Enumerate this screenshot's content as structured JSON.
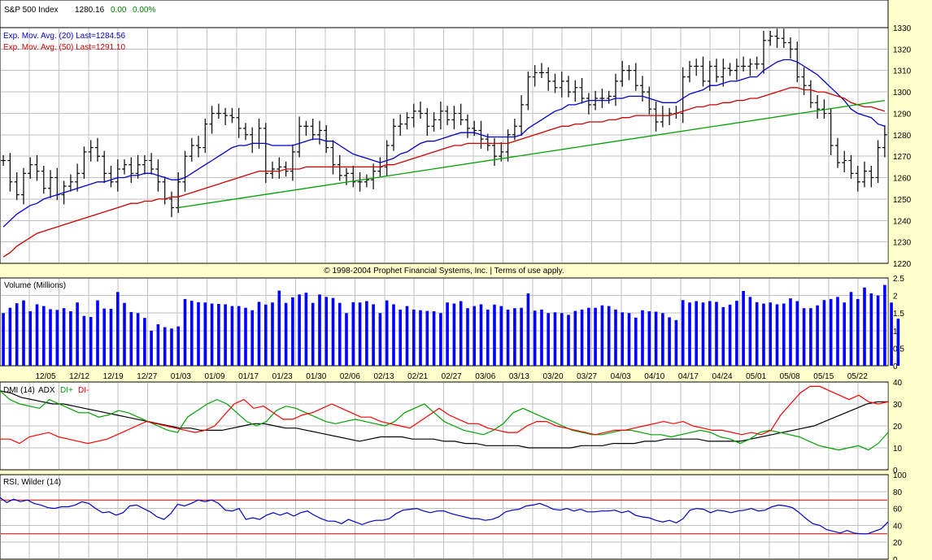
{
  "header": {
    "symbol": "S&P 500 Index",
    "last": "1280.16",
    "change": "0.00",
    "change_pct": "0.00%"
  },
  "legend": {
    "ema20": "Exp. Mov. Avg. (20) Last=1284.56",
    "ema50": "Exp. Mov. Avg. (50) Last=1291.10"
  },
  "copyright": "© 1998-2004 Prophet Financial Systems, Inc. | Terms of use apply.",
  "colors": {
    "background": "#ffffcc",
    "price_bar": "#000000",
    "ema20": "#0000cc",
    "ema50": "#cc0000",
    "trendline": "#00a000",
    "volume_bar": "#0000ff",
    "adx": "#000000",
    "di_plus": "#00a000",
    "di_minus": "#ff0000",
    "rsi": "#0000cc",
    "rsi_bounds": "#cc0000"
  },
  "chart_data": [
    {
      "type": "ohlc",
      "panel": "price",
      "ylim": [
        1220,
        1330
      ],
      "yticks": [
        1220,
        1230,
        1240,
        1250,
        1260,
        1270,
        1280,
        1290,
        1300,
        1310,
        1320,
        1330
      ],
      "grid": true,
      "close": [
        1268,
        1258,
        1252,
        1262,
        1266,
        1263,
        1255,
        1260,
        1252,
        1256,
        1258,
        1262,
        1272,
        1274,
        1270,
        1262,
        1258,
        1264,
        1266,
        1262,
        1266,
        1268,
        1264,
        1258,
        1250,
        1246,
        1258,
        1270,
        1275,
        1274,
        1285,
        1290,
        1290,
        1289,
        1288,
        1283,
        1280,
        1276,
        1283,
        1262,
        1264,
        1265,
        1263,
        1272,
        1284,
        1284,
        1280,
        1282,
        1274,
        1266,
        1261,
        1262,
        1258,
        1258,
        1259,
        1263,
        1265,
        1275,
        1284,
        1285,
        1288,
        1291,
        1290,
        1284,
        1287,
        1291,
        1287,
        1290,
        1287,
        1283,
        1282,
        1278,
        1275,
        1270,
        1272,
        1280,
        1284,
        1294,
        1307,
        1309,
        1309,
        1305,
        1302,
        1305,
        1300,
        1302,
        1297,
        1294,
        1297,
        1297,
        1298,
        1305,
        1310,
        1310,
        1303,
        1300,
        1292,
        1286,
        1289,
        1290,
        1290,
        1307,
        1312,
        1312,
        1305,
        1312,
        1307,
        1311,
        1310,
        1312,
        1312,
        1313,
        1313,
        1324,
        1326,
        1325,
        1323,
        1320,
        1307,
        1303,
        1295,
        1292,
        1290,
        1275,
        1267,
        1268,
        1262,
        1258,
        1263,
        1260,
        1274,
        1280
      ],
      "ema20": [
        1237,
        1240,
        1243,
        1245,
        1247,
        1248,
        1250,
        1251,
        1252,
        1253,
        1254,
        1255,
        1256,
        1257,
        1258,
        1258,
        1259,
        1260,
        1260,
        1261,
        1261,
        1262,
        1262,
        1261,
        1260,
        1259,
        1259,
        1260,
        1262,
        1264,
        1266,
        1268,
        1270,
        1272,
        1274,
        1275,
        1275,
        1276,
        1276,
        1276,
        1275,
        1275,
        1275,
        1275,
        1276,
        1277,
        1278,
        1278,
        1277,
        1277,
        1275,
        1273,
        1271,
        1270,
        1269,
        1268,
        1267,
        1268,
        1269,
        1271,
        1272,
        1274,
        1276,
        1277,
        1277,
        1278,
        1279,
        1280,
        1281,
        1281,
        1281,
        1280,
        1279,
        1279,
        1279,
        1279,
        1279,
        1280,
        1283,
        1285,
        1287,
        1289,
        1291,
        1292,
        1294,
        1294,
        1295,
        1296,
        1296,
        1296,
        1296,
        1297,
        1297,
        1298,
        1298,
        1298,
        1297,
        1296,
        1295,
        1295,
        1295,
        1297,
        1299,
        1300,
        1301,
        1303,
        1303,
        1304,
        1305,
        1305,
        1306,
        1307,
        1307,
        1310,
        1312,
        1314,
        1315,
        1315,
        1314,
        1312,
        1310,
        1308,
        1305,
        1302,
        1299,
        1296,
        1292,
        1290,
        1289,
        1288,
        1285,
        1284
      ],
      "ema50": [
        1223,
        1225,
        1228,
        1230,
        1232,
        1234,
        1235,
        1236,
        1237,
        1238,
        1239,
        1240,
        1241,
        1242,
        1243,
        1244,
        1245,
        1246,
        1247,
        1248,
        1248,
        1249,
        1249,
        1250,
        1250,
        1251,
        1251,
        1252,
        1253,
        1254,
        1255,
        1256,
        1257,
        1258,
        1259,
        1260,
        1261,
        1262,
        1263,
        1263,
        1263,
        1263,
        1264,
        1264,
        1264,
        1265,
        1265,
        1265,
        1265,
        1265,
        1265,
        1265,
        1265,
        1265,
        1265,
        1265,
        1265,
        1266,
        1266,
        1267,
        1268,
        1269,
        1270,
        1271,
        1272,
        1273,
        1274,
        1275,
        1275,
        1276,
        1276,
        1276,
        1276,
        1276,
        1276,
        1276,
        1277,
        1278,
        1279,
        1280,
        1281,
        1282,
        1283,
        1284,
        1284,
        1285,
        1285,
        1286,
        1286,
        1286,
        1287,
        1287,
        1288,
        1288,
        1289,
        1289,
        1289,
        1289,
        1289,
        1289,
        1290,
        1291,
        1292,
        1293,
        1293,
        1294,
        1294,
        1295,
        1295,
        1296,
        1296,
        1297,
        1297,
        1298,
        1299,
        1300,
        1301,
        1302,
        1302,
        1301,
        1301,
        1300,
        1300,
        1299,
        1298,
        1297,
        1295,
        1294,
        1293,
        1293,
        1292,
        1291
      ],
      "trendline": [
        {
          "x": 26,
          "y": 1246
        },
        {
          "x": 131,
          "y": 1296
        }
      ]
    },
    {
      "type": "bar",
      "panel": "volume",
      "title": "Volume (Millions)",
      "ylim": [
        0,
        2.5
      ],
      "yticks": [
        0,
        0.5,
        1,
        1.5,
        2,
        2.5
      ],
      "values": [
        1.5,
        1.65,
        1.78,
        1.86,
        1.55,
        1.75,
        1.7,
        1.61,
        1.59,
        1.64,
        1.55,
        1.8,
        1.42,
        1.39,
        1.86,
        1.63,
        1.62,
        2.1,
        1.79,
        1.53,
        1.5,
        1.36,
        1.0,
        1.18,
        1.1,
        1.06,
        1.12,
        1.9,
        1.85,
        1.81,
        1.8,
        1.77,
        1.76,
        1.75,
        1.7,
        1.7,
        1.65,
        1.58,
        1.82,
        1.74,
        1.8,
        2.14,
        1.79,
        1.95,
        2.03,
        2.08,
        1.79,
        2.03,
        1.96,
        1.93,
        1.79,
        1.5,
        1.81,
        1.8,
        1.84,
        1.75,
        1.5,
        1.86,
        1.75,
        1.6,
        1.7,
        1.6,
        1.58,
        1.56,
        1.55,
        1.5,
        1.8,
        1.77,
        1.84,
        1.64,
        1.7,
        1.75,
        1.6,
        1.74,
        1.7,
        1.6,
        1.64,
        1.65,
        2.06,
        1.57,
        1.6,
        1.5,
        1.52,
        1.5,
        1.45,
        1.56,
        1.6,
        1.65,
        1.65,
        1.72,
        1.7,
        1.6,
        1.52,
        1.5,
        1.37,
        1.58,
        1.55,
        1.54,
        1.5,
        1.38,
        1.3,
        1.87,
        1.8,
        1.84,
        1.8,
        1.84,
        1.82,
        1.67,
        1.74,
        1.85,
        2.13,
        1.96,
        1.81,
        1.77,
        1.8,
        1.75,
        1.77,
        1.92,
        1.84,
        1.64,
        1.64,
        1.72,
        1.87,
        1.9,
        1.96,
        1.8,
        2.1,
        1.9,
        2.23,
        2.06,
        2.0,
        2.3,
        1.8,
        1.34
      ],
      "grid": true
    },
    {
      "type": "line",
      "panel": "dmi",
      "title": "DMI (14)",
      "ylim": [
        0,
        40
      ],
      "yticks": [
        0,
        10,
        20,
        30,
        40
      ],
      "grid": true,
      "series": [
        {
          "name": "ADX",
          "values": [
            36,
            35,
            33,
            32,
            31,
            30,
            30,
            29,
            28,
            27,
            26,
            25,
            24,
            23,
            22,
            21,
            20,
            19,
            19,
            18,
            18,
            18,
            19,
            20,
            21,
            21,
            20,
            19,
            19,
            18,
            17,
            16,
            15,
            14,
            13,
            14,
            15,
            15,
            15,
            14,
            14,
            14,
            13,
            13,
            12,
            12,
            11,
            11,
            11,
            11,
            10,
            10,
            10,
            10,
            10,
            11,
            11,
            11,
            12,
            12,
            12,
            13,
            13,
            14,
            14,
            14,
            14,
            13,
            13,
            13,
            13,
            14,
            15,
            16,
            17,
            18,
            19,
            20,
            22,
            24,
            26,
            28,
            30,
            31,
            31
          ]
        },
        {
          "name": "DI+",
          "values": [
            36,
            32,
            30,
            29,
            28,
            32,
            30,
            28,
            26,
            26,
            24,
            25,
            27,
            26,
            24,
            22,
            20,
            18,
            17,
            24,
            27,
            30,
            32,
            30,
            26,
            22,
            20,
            22,
            27,
            29,
            28,
            26,
            24,
            22,
            21,
            22,
            23,
            22,
            21,
            20,
            22,
            26,
            28,
            30,
            26,
            22,
            20,
            18,
            17,
            16,
            18,
            21,
            26,
            28,
            26,
            24,
            22,
            20,
            18,
            17,
            16,
            16,
            17,
            18,
            18,
            17,
            16,
            16,
            15,
            16,
            17,
            18,
            17,
            15,
            14,
            12,
            14,
            17,
            18,
            17,
            16,
            15,
            13,
            11,
            10,
            9,
            10,
            11,
            9,
            12,
            17
          ]
        },
        {
          "name": "DI-",
          "values": [
            14,
            14,
            12,
            15,
            16,
            17,
            15,
            14,
            13,
            12,
            13,
            14,
            16,
            18,
            20,
            22,
            21,
            20,
            19,
            18,
            17,
            18,
            20,
            25,
            30,
            32,
            28,
            29,
            26,
            23,
            23,
            25,
            26,
            28,
            30,
            28,
            26,
            24,
            24,
            22,
            21,
            20,
            19,
            22,
            25,
            28,
            25,
            23,
            21,
            21,
            19,
            18,
            17,
            17,
            20,
            22,
            22,
            20,
            19,
            18,
            17,
            16,
            17,
            18,
            18,
            19,
            20,
            21,
            22,
            21,
            22,
            20,
            19,
            18,
            18,
            17,
            16,
            17,
            16,
            18,
            25,
            30,
            35,
            38,
            38,
            36,
            34,
            32,
            34,
            31,
            30,
            31
          ]
        }
      ]
    },
    {
      "type": "line",
      "panel": "rsi",
      "title": "RSI, Wilder (14)",
      "ylim": [
        0,
        100
      ],
      "yticks": [
        0,
        20,
        40,
        60,
        80,
        100
      ],
      "bounds": [
        30,
        70
      ],
      "grid": true,
      "values": [
        73,
        67,
        71,
        68,
        70,
        66,
        64,
        61,
        60,
        62,
        62,
        64,
        68,
        66,
        60,
        55,
        56,
        52,
        55,
        63,
        64,
        60,
        56,
        50,
        47,
        54,
        65,
        63,
        66,
        70,
        68,
        70,
        66,
        58,
        57,
        60,
        47,
        49,
        47,
        52,
        55,
        52,
        55,
        51,
        55,
        57,
        52,
        48,
        45,
        45,
        42,
        47,
        44,
        41,
        44,
        46,
        46,
        48,
        54,
        58,
        59,
        60,
        57,
        55,
        57,
        57,
        54,
        52,
        50,
        48,
        48,
        46,
        47,
        50,
        56,
        58,
        59,
        63,
        64,
        66,
        63,
        59,
        58,
        60,
        57,
        59,
        56,
        56,
        57,
        57,
        58,
        55,
        57,
        52,
        50,
        49,
        46,
        44,
        46,
        43,
        48,
        58,
        60,
        59,
        55,
        58,
        57,
        55,
        57,
        58,
        60,
        57,
        58,
        62,
        64,
        63,
        61,
        55,
        48,
        42,
        40,
        35,
        33,
        31,
        34,
        31,
        30,
        30,
        33,
        36,
        44
      ]
    }
  ],
  "x_axis": {
    "tick_labels": [
      "12/05",
      "12/12",
      "12/19",
      "12/27",
      "01/03",
      "01/09",
      "01/17",
      "01/23",
      "01/30",
      "02/06",
      "02/13",
      "02/21",
      "02/27",
      "03/06",
      "03/13",
      "03/20",
      "03/27",
      "04/03",
      "04/10",
      "04/17",
      "04/24",
      "05/01",
      "05/08",
      "05/15",
      "05/22"
    ]
  },
  "panels": {
    "volume_title": "Volume (Millions)",
    "dmi_title": "DMI (14)",
    "adx_label": "ADX",
    "diplus_label": "DI+",
    "diminus_label": "DI-",
    "rsi_title": "RSI, Wilder (14)"
  }
}
